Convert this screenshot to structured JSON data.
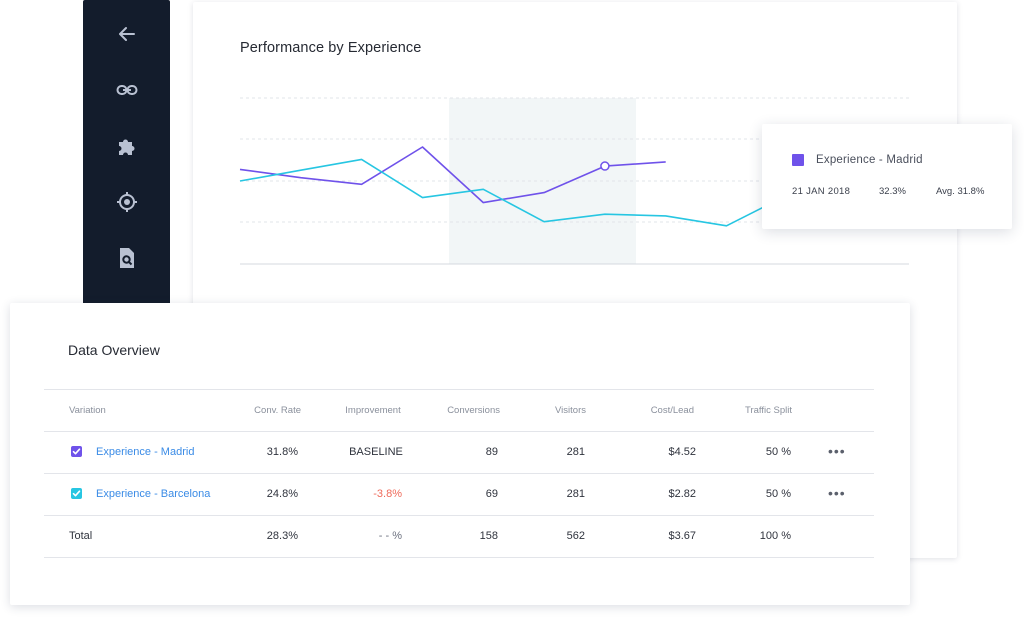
{
  "sidebar": {
    "icons": [
      "arrow-left-icon",
      "link-icon",
      "puzzle-icon",
      "target-icon",
      "search-document-icon"
    ]
  },
  "chart": {
    "title": "Performance by Experience"
  },
  "chart_data": {
    "type": "line",
    "title": "Performance by Experience",
    "x": [
      1,
      2,
      3,
      4,
      5,
      6,
      7,
      8,
      9,
      10,
      11,
      12
    ],
    "ylim": [
      20,
      40
    ],
    "grid": true,
    "series": [
      {
        "name": "Experience - Madrid",
        "color": "#6f52ea",
        "values": [
          31.4,
          30.4,
          29.6,
          34.1,
          27.4,
          28.6,
          31.8,
          32.3,
          null,
          null,
          null,
          null
        ]
      },
      {
        "name": "Experience - Barcelona",
        "color": "#27c6e2",
        "values": [
          30.0,
          31.3,
          32.6,
          28.0,
          29.0,
          25.1,
          26.0,
          25.8,
          24.6,
          28.3,
          null,
          null
        ]
      }
    ]
  },
  "tooltip": {
    "series": "Experience - Madrid",
    "date": "21 JAN 2018",
    "value": "32.3%",
    "avg": "Avg. 31.8%"
  },
  "table": {
    "title": "Data Overview",
    "headers": [
      "Variation",
      "Conv. Rate",
      "Improvement",
      "Conversions",
      "Visitors",
      "Cost/Lead",
      "Traffic Split"
    ],
    "rows": [
      {
        "name": "Experience - Madrid",
        "conv": "31.8%",
        "improvement": "BASELINE",
        "conversions": "89",
        "visitors": "281",
        "cost": "$4.52",
        "split": "50 %",
        "color": "#6f52ea"
      },
      {
        "name": "Experience - Barcelona",
        "conv": "24.8%",
        "improvement": "-3.8%",
        "conversions": "69",
        "visitors": "281",
        "cost": "$2.82",
        "split": "50 %",
        "color": "#27c6e2"
      }
    ],
    "total": {
      "label": "Total",
      "conv": "28.3%",
      "improvement": "- - %",
      "conversions": "158",
      "visitors": "562",
      "cost": "$3.67",
      "split": "100 %"
    },
    "more_label": "•••"
  }
}
